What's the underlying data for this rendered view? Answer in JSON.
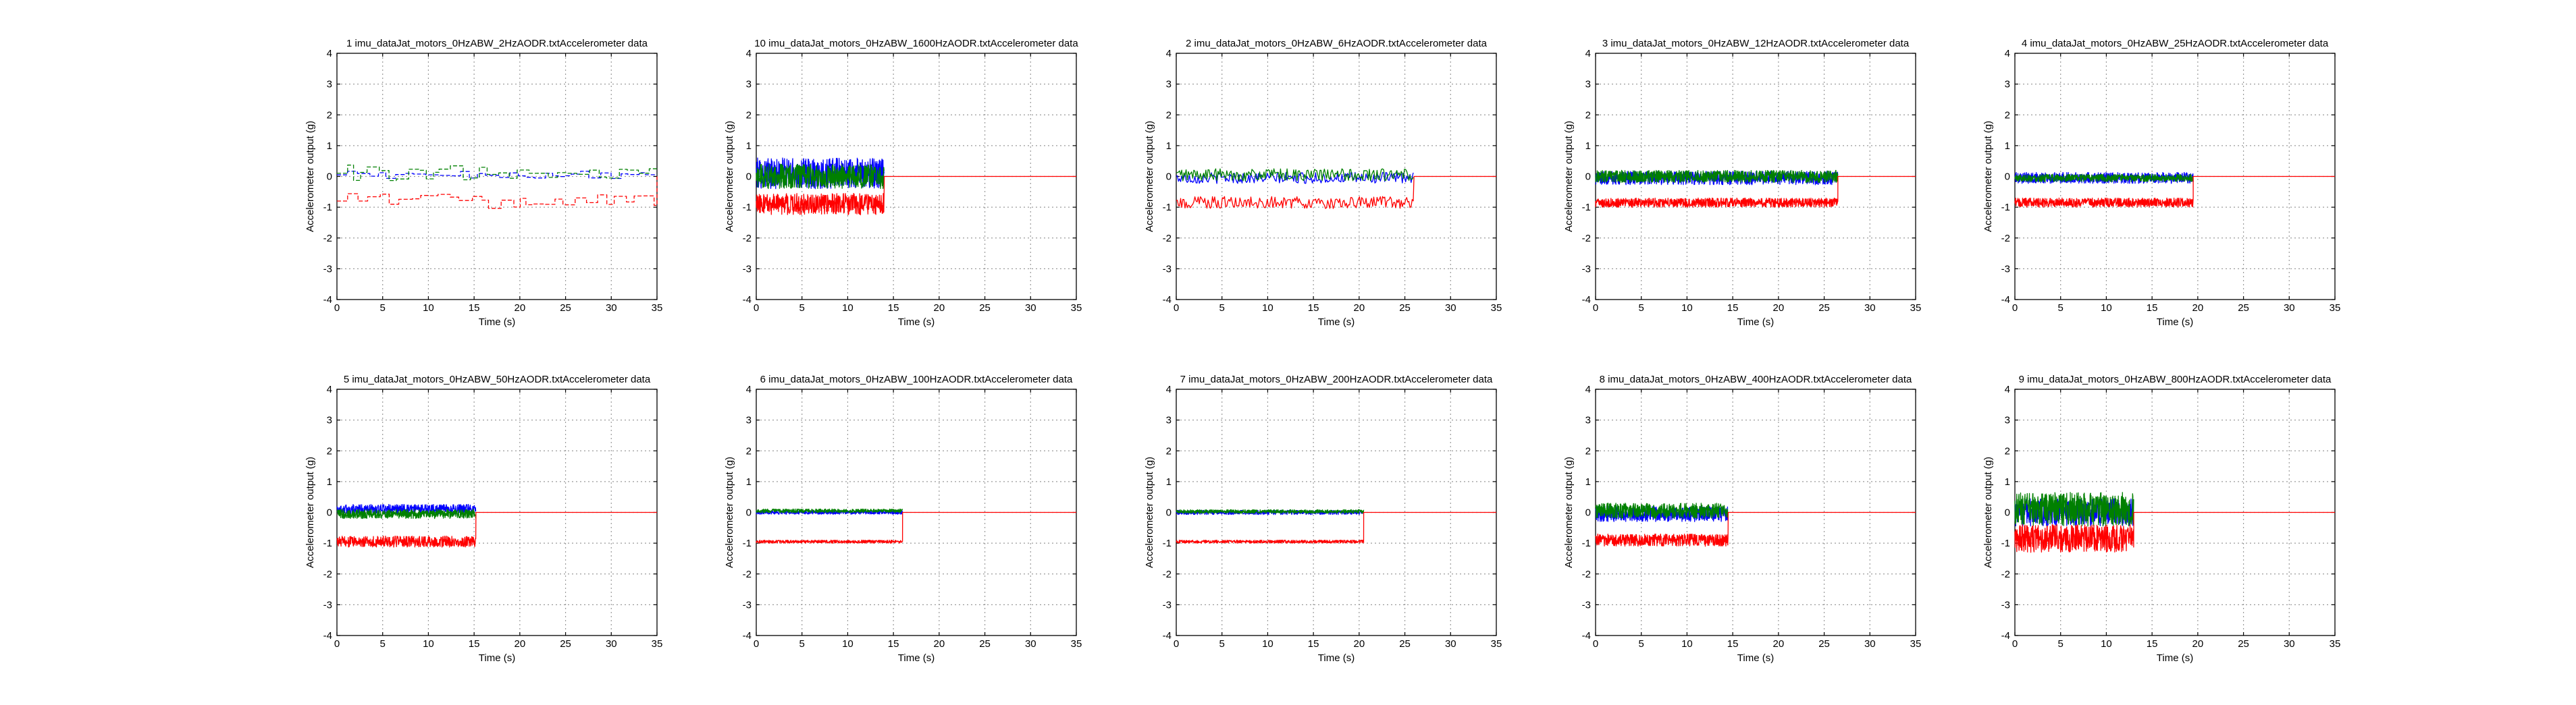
{
  "figure": {
    "colors": {
      "x": "#0000ff",
      "y": "#008000",
      "z": "#ff0000",
      "background": "#ffffff",
      "grid": "#9a9a9a"
    }
  },
  "chart_data": [
    {
      "type": "line",
      "title": "1 imu_dataJat_motors_0HzABW_2HzAODR.txtAccelerometer data",
      "xlabel": "Time (s)",
      "ylabel": "Accelerometer output (g)",
      "xlim": [
        0,
        35
      ],
      "ylim": [
        -4,
        4
      ],
      "xticks": [
        "0",
        "5",
        "10",
        "15",
        "20",
        "25",
        "30",
        "35"
      ],
      "yticks": [
        "-4",
        "-3",
        "-2",
        "-1",
        "0",
        "1",
        "2",
        "3",
        "4"
      ],
      "grid": true,
      "record_end_s": 35,
      "series": [
        {
          "color": "#0000ff",
          "style": "dashed-step",
          "level": 0.05,
          "amplitude": 0.12
        },
        {
          "color": "#008000",
          "style": "dashed-step",
          "level": 0.1,
          "amplitude": 0.28
        },
        {
          "color": "#ff0000",
          "style": "dashed-step",
          "level": -0.8,
          "amplitude": 0.25
        }
      ]
    },
    {
      "type": "line",
      "title": "10 imu_dataJat_motors_0HzABW_1600HzAODR.txtAccelerometer data",
      "xlabel": "Time (s)",
      "ylabel": "Accelerometer output (g)",
      "xlim": [
        0,
        35
      ],
      "ylim": [
        -4,
        4
      ],
      "xticks": [
        "0",
        "5",
        "10",
        "15",
        "20",
        "25",
        "30",
        "35"
      ],
      "yticks": [
        "-4",
        "-3",
        "-2",
        "-1",
        "0",
        "1",
        "2",
        "3",
        "4"
      ],
      "grid": true,
      "record_end_s": 14,
      "series": [
        {
          "color": "#0000ff",
          "style": "noise",
          "level": 0.1,
          "amplitude": 0.5
        },
        {
          "color": "#008000",
          "style": "noise",
          "level": 0.0,
          "amplitude": 0.4
        },
        {
          "color": "#ff0000",
          "style": "noise",
          "level": -0.9,
          "amplitude": 0.35
        }
      ]
    },
    {
      "type": "line",
      "title": "2 imu_dataJat_motors_0HzABW_6HzAODR.txtAccelerometer data",
      "xlabel": "Time (s)",
      "ylabel": "Accelerometer output (g)",
      "xlim": [
        0,
        35
      ],
      "ylim": [
        -4,
        4
      ],
      "xticks": [
        "0",
        "5",
        "10",
        "15",
        "20",
        "25",
        "30",
        "35"
      ],
      "yticks": [
        "-4",
        "-3",
        "-2",
        "-1",
        "0",
        "1",
        "2",
        "3",
        "4"
      ],
      "grid": true,
      "record_end_s": 26,
      "series": [
        {
          "color": "#0000ff",
          "style": "wiggle",
          "level": -0.05,
          "amplitude": 0.18
        },
        {
          "color": "#008000",
          "style": "wiggle",
          "level": 0.05,
          "amplitude": 0.2
        },
        {
          "color": "#ff0000",
          "style": "wiggle",
          "level": -0.85,
          "amplitude": 0.2
        }
      ]
    },
    {
      "type": "line",
      "title": "3 imu_dataJat_motors_0HzABW_12HzAODR.txtAccelerometer data",
      "xlabel": "Time (s)",
      "ylabel": "Accelerometer output (g)",
      "xlim": [
        0,
        35
      ],
      "ylim": [
        -4,
        4
      ],
      "xticks": [
        "0",
        "5",
        "10",
        "15",
        "20",
        "25",
        "30",
        "35"
      ],
      "yticks": [
        "-4",
        "-3",
        "-2",
        "-1",
        "0",
        "1",
        "2",
        "3",
        "4"
      ],
      "grid": true,
      "record_end_s": 26.5,
      "series": [
        {
          "color": "#0000ff",
          "style": "noise",
          "level": -0.05,
          "amplitude": 0.22
        },
        {
          "color": "#008000",
          "style": "noise",
          "level": 0.0,
          "amplitude": 0.2
        },
        {
          "color": "#ff0000",
          "style": "noise",
          "level": -0.85,
          "amplitude": 0.15
        }
      ]
    },
    {
      "type": "line",
      "title": "4 imu_dataJat_motors_0HzABW_25HzAODR.txtAccelerometer data",
      "xlabel": "Time (s)",
      "ylabel": "Accelerometer output (g)",
      "xlim": [
        0,
        35
      ],
      "ylim": [
        -4,
        4
      ],
      "xticks": [
        "0",
        "5",
        "10",
        "15",
        "20",
        "25",
        "30",
        "35"
      ],
      "yticks": [
        "-4",
        "-3",
        "-2",
        "-1",
        "0",
        "1",
        "2",
        "3",
        "4"
      ],
      "grid": true,
      "record_end_s": 19.5,
      "series": [
        {
          "color": "#0000ff",
          "style": "noise",
          "level": -0.05,
          "amplitude": 0.18
        },
        {
          "color": "#008000",
          "style": "noise",
          "level": -0.05,
          "amplitude": 0.12
        },
        {
          "color": "#ff0000",
          "style": "noise",
          "level": -0.85,
          "amplitude": 0.15
        }
      ]
    },
    {
      "type": "line",
      "title": "5 imu_dataJat_motors_0HzABW_50HzAODR.txtAccelerometer data",
      "xlabel": "Time (s)",
      "ylabel": "Accelerometer output (g)",
      "xlim": [
        0,
        35
      ],
      "ylim": [
        -4,
        4
      ],
      "xticks": [
        "0",
        "5",
        "10",
        "15",
        "20",
        "25",
        "30",
        "35"
      ],
      "yticks": [
        "-4",
        "-3",
        "-2",
        "-1",
        "0",
        "1",
        "2",
        "3",
        "4"
      ],
      "grid": true,
      "record_end_s": 15.2,
      "series": [
        {
          "color": "#0000ff",
          "style": "noise",
          "level": 0.1,
          "amplitude": 0.16
        },
        {
          "color": "#008000",
          "style": "noise",
          "level": -0.05,
          "amplitude": 0.15
        },
        {
          "color": "#ff0000",
          "style": "noise",
          "level": -0.95,
          "amplitude": 0.18
        }
      ]
    },
    {
      "type": "line",
      "title": "6 imu_dataJat_motors_0HzABW_100HzAODR.txtAccelerometer data",
      "xlabel": "Time (s)",
      "ylabel": "Accelerometer output (g)",
      "xlim": [
        0,
        35
      ],
      "ylim": [
        -4,
        4
      ],
      "xticks": [
        "0",
        "5",
        "10",
        "15",
        "20",
        "25",
        "30",
        "35"
      ],
      "yticks": [
        "-4",
        "-3",
        "-2",
        "-1",
        "0",
        "1",
        "2",
        "3",
        "4"
      ],
      "grid": true,
      "record_end_s": 16,
      "series": [
        {
          "color": "#0000ff",
          "style": "noise",
          "level": 0.0,
          "amplitude": 0.06
        },
        {
          "color": "#008000",
          "style": "noise",
          "level": 0.05,
          "amplitude": 0.06
        },
        {
          "color": "#ff0000",
          "style": "noise",
          "level": -0.95,
          "amplitude": 0.05
        }
      ]
    },
    {
      "type": "line",
      "title": "7 imu_dataJat_motors_0HzABW_200HzAODR.txtAccelerometer data",
      "xlabel": "Time (s)",
      "ylabel": "Accelerometer output (g)",
      "xlim": [
        0,
        35
      ],
      "ylim": [
        -4,
        4
      ],
      "xticks": [
        "0",
        "5",
        "10",
        "15",
        "20",
        "25",
        "30",
        "35"
      ],
      "yticks": [
        "-4",
        "-3",
        "-2",
        "-1",
        "0",
        "1",
        "2",
        "3",
        "4"
      ],
      "grid": true,
      "record_end_s": 20.5,
      "series": [
        {
          "color": "#0000ff",
          "style": "noise",
          "level": 0.0,
          "amplitude": 0.07
        },
        {
          "color": "#008000",
          "style": "noise",
          "level": 0.03,
          "amplitude": 0.06
        },
        {
          "color": "#ff0000",
          "style": "noise",
          "level": -0.95,
          "amplitude": 0.05
        }
      ]
    },
    {
      "type": "line",
      "title": "8 imu_dataJat_motors_0HzABW_400HzAODR.txtAccelerometer data",
      "xlabel": "Time (s)",
      "ylabel": "Accelerometer output (g)",
      "xlim": [
        0,
        35
      ],
      "ylim": [
        -4,
        4
      ],
      "xticks": [
        "0",
        "5",
        "10",
        "15",
        "20",
        "25",
        "30",
        "35"
      ],
      "yticks": [
        "-4",
        "-3",
        "-2",
        "-1",
        "0",
        "1",
        "2",
        "3",
        "4"
      ],
      "grid": true,
      "record_end_s": 14.5,
      "series": [
        {
          "color": "#0000ff",
          "style": "noise",
          "level": -0.05,
          "amplitude": 0.25
        },
        {
          "color": "#008000",
          "style": "noise",
          "level": 0.05,
          "amplitude": 0.25
        },
        {
          "color": "#ff0000",
          "style": "noise",
          "level": -0.9,
          "amplitude": 0.2
        }
      ]
    },
    {
      "type": "line",
      "title": "9 imu_dataJat_motors_0HzABW_800HzAODR.txtAccelerometer data",
      "xlabel": "Time (s)",
      "ylabel": "Accelerometer output (g)",
      "xlim": [
        0,
        35
      ],
      "ylim": [
        -4,
        4
      ],
      "xticks": [
        "0",
        "5",
        "10",
        "15",
        "20",
        "25",
        "30",
        "35"
      ],
      "yticks": [
        "-4",
        "-3",
        "-2",
        "-1",
        "0",
        "1",
        "2",
        "3",
        "4"
      ],
      "grid": true,
      "record_end_s": 13,
      "series": [
        {
          "color": "#0000ff",
          "style": "noise",
          "level": 0.0,
          "amplitude": 0.45
        },
        {
          "color": "#008000",
          "style": "noise",
          "level": 0.1,
          "amplitude": 0.55
        },
        {
          "color": "#ff0000",
          "style": "noise",
          "level": -0.85,
          "amplitude": 0.45
        }
      ]
    }
  ]
}
